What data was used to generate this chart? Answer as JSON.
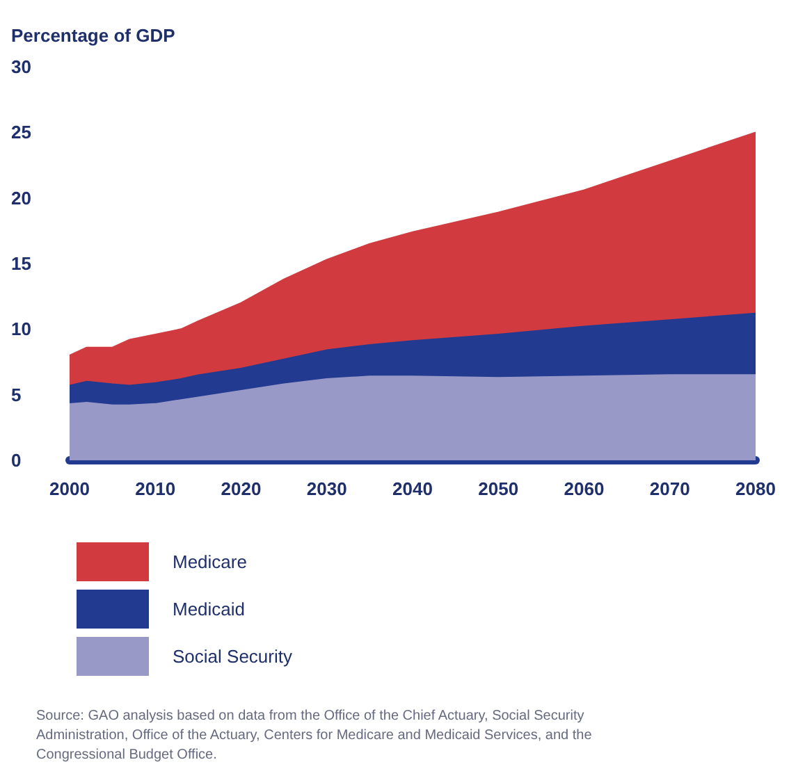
{
  "chart_data": {
    "type": "area",
    "stacked": true,
    "ylabel": "Percentage of GDP",
    "x": [
      2000,
      2002,
      2005,
      2007,
      2010,
      2013,
      2015,
      2020,
      2025,
      2030,
      2035,
      2040,
      2050,
      2060,
      2070,
      2080
    ],
    "series": [
      {
        "name": "Social Security",
        "color": "#9999c8",
        "values": [
          4.3,
          4.4,
          4.2,
          4.2,
          4.3,
          4.6,
          4.8,
          5.3,
          5.8,
          6.2,
          6.4,
          6.4,
          6.3,
          6.4,
          6.5,
          6.5
        ]
      },
      {
        "name": "Medicaid",
        "color": "#223a8f",
        "values": [
          1.4,
          1.6,
          1.6,
          1.5,
          1.6,
          1.6,
          1.7,
          1.7,
          1.9,
          2.2,
          2.4,
          2.7,
          3.3,
          3.8,
          4.2,
          4.7
        ]
      },
      {
        "name": "Medicare",
        "color": "#d13b40",
        "values": [
          2.3,
          2.6,
          2.8,
          3.5,
          3.7,
          3.8,
          4.1,
          5.0,
          6.1,
          6.9,
          7.7,
          8.3,
          9.3,
          10.4,
          12.1,
          13.8
        ]
      }
    ],
    "xlim": [
      2000,
      2080
    ],
    "xticks": [
      2000,
      2010,
      2020,
      2030,
      2040,
      2050,
      2060,
      2070,
      2080
    ],
    "ylim": [
      0,
      30
    ],
    "yticks": [
      0,
      5,
      10,
      15,
      20,
      25,
      30
    ],
    "grid": false,
    "legend": "bottom left",
    "annotations": [
      "Source: GAO analysis based on data from the Office of the Chief Actuary, Social Security Administration, Office of the Actuary, Centers for Medicare and Medicaid Services, and the Congressional Budget Office."
    ]
  }
}
